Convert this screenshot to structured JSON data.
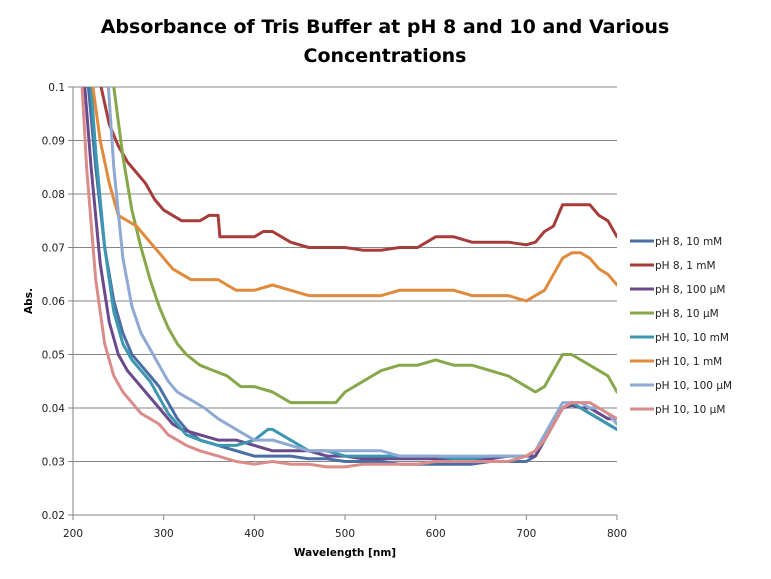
{
  "chart_data": {
    "type": "line",
    "title_lines": [
      "Absorbance of Tris Buffer at pH 8 and 10 and Various",
      "Concentrations"
    ],
    "xlabel": "Wavelength [nm]",
    "ylabel": "Abs.",
    "xlim": [
      200,
      800
    ],
    "ylim": [
      0.02,
      0.1
    ],
    "xticks": [
      200,
      300,
      400,
      500,
      600,
      700,
      800
    ],
    "xtick_labels": [
      "200",
      "300",
      "400",
      "500",
      "600",
      "700",
      "800"
    ],
    "yticks": [
      0.02,
      0.03,
      0.04,
      0.05,
      0.06,
      0.07,
      0.08,
      0.09,
      0.1
    ],
    "ytick_labels": [
      "0.02",
      "0.03",
      "0.04",
      "0.05",
      "0.06",
      "0.07",
      "0.08",
      "0.09",
      "0.1"
    ],
    "grid": "horizontal",
    "legend_position": "right",
    "series": [
      {
        "name": "pH 8, 10 mM",
        "color": "#4a6fa5",
        "x": [
          200,
          217,
          225,
          235,
          245,
          255,
          265,
          275,
          285,
          295,
          305,
          315,
          325,
          340,
          360,
          380,
          400,
          420,
          440,
          460,
          480,
          500,
          520,
          540,
          560,
          580,
          600,
          620,
          640,
          660,
          680,
          700,
          710,
          720,
          730,
          740,
          750,
          760,
          770,
          780,
          790,
          800
        ],
        "y": [
          0.16,
          0.1,
          0.085,
          0.07,
          0.06,
          0.054,
          0.05,
          0.048,
          0.046,
          0.044,
          0.041,
          0.038,
          0.036,
          0.034,
          0.033,
          0.032,
          0.031,
          0.031,
          0.031,
          0.0305,
          0.0305,
          0.03,
          0.03,
          0.03,
          0.0295,
          0.0295,
          0.0295,
          0.0295,
          0.0295,
          0.03,
          0.03,
          0.03,
          0.031,
          0.034,
          0.037,
          0.04,
          0.041,
          0.04,
          0.039,
          0.038,
          0.037,
          0.036
        ]
      },
      {
        "name": "pH 8, 1 mM",
        "color": "#a63d3a",
        "x": [
          200,
          225,
          231,
          240,
          250,
          260,
          270,
          280,
          290,
          300,
          310,
          320,
          330,
          340,
          350,
          360,
          362,
          380,
          400,
          410,
          420,
          440,
          460,
          480,
          500,
          520,
          540,
          560,
          580,
          600,
          620,
          640,
          660,
          680,
          700,
          710,
          720,
          730,
          740,
          750,
          760,
          770,
          780,
          790,
          800
        ],
        "y": [
          0.13,
          0.104,
          0.1,
          0.093,
          0.089,
          0.086,
          0.084,
          0.082,
          0.079,
          0.077,
          0.076,
          0.075,
          0.075,
          0.075,
          0.076,
          0.076,
          0.072,
          0.072,
          0.072,
          0.073,
          0.073,
          0.071,
          0.07,
          0.07,
          0.07,
          0.0695,
          0.0695,
          0.07,
          0.07,
          0.072,
          0.072,
          0.071,
          0.071,
          0.071,
          0.0705,
          0.071,
          0.073,
          0.074,
          0.078,
          0.078,
          0.078,
          0.078,
          0.076,
          0.075,
          0.072
        ]
      },
      {
        "name": "pH 8, 100 µM",
        "color": "#6a4a8c",
        "x": [
          200,
          213,
          220,
          230,
          240,
          250,
          260,
          270,
          280,
          290,
          300,
          310,
          320,
          340,
          360,
          380,
          400,
          420,
          440,
          460,
          480,
          500,
          520,
          540,
          560,
          580,
          600,
          620,
          640,
          660,
          680,
          700,
          710,
          720,
          730,
          740,
          750,
          760,
          770,
          780,
          790,
          800
        ],
        "y": [
          0.16,
          0.1,
          0.085,
          0.067,
          0.056,
          0.05,
          0.047,
          0.045,
          0.043,
          0.041,
          0.039,
          0.037,
          0.036,
          0.035,
          0.034,
          0.034,
          0.033,
          0.032,
          0.032,
          0.032,
          0.031,
          0.031,
          0.0305,
          0.0305,
          0.0305,
          0.0305,
          0.0305,
          0.0305,
          0.0305,
          0.0305,
          0.031,
          0.031,
          0.031,
          0.034,
          0.037,
          0.04,
          0.0405,
          0.04,
          0.04,
          0.039,
          0.038,
          0.038
        ]
      },
      {
        "name": "pH 8, 10 µM",
        "color": "#86a84a",
        "x": [
          200,
          240,
          245,
          255,
          265,
          275,
          285,
          295,
          305,
          315,
          325,
          340,
          355,
          370,
          385,
          400,
          420,
          440,
          460,
          480,
          490,
          500,
          520,
          540,
          560,
          580,
          600,
          620,
          640,
          660,
          680,
          700,
          710,
          720,
          730,
          740,
          750,
          760,
          770,
          780,
          790,
          800
        ],
        "y": [
          0.13,
          0.108,
          0.1,
          0.087,
          0.077,
          0.07,
          0.064,
          0.059,
          0.055,
          0.052,
          0.05,
          0.048,
          0.047,
          0.046,
          0.044,
          0.044,
          0.043,
          0.041,
          0.041,
          0.041,
          0.041,
          0.043,
          0.045,
          0.047,
          0.048,
          0.048,
          0.049,
          0.048,
          0.048,
          0.047,
          0.046,
          0.044,
          0.043,
          0.044,
          0.047,
          0.05,
          0.05,
          0.049,
          0.048,
          0.047,
          0.046,
          0.043
        ]
      },
      {
        "name": "pH 10, 10 mM",
        "color": "#3c98b0",
        "x": [
          200,
          220,
          225,
          235,
          245,
          255,
          265,
          275,
          285,
          295,
          305,
          315,
          325,
          340,
          360,
          380,
          400,
          415,
          420,
          440,
          460,
          480,
          500,
          520,
          540,
          560,
          580,
          600,
          620,
          640,
          660,
          680,
          700,
          710,
          720,
          730,
          740,
          750,
          760,
          770,
          780,
          790,
          800
        ],
        "y": [
          0.14,
          0.1,
          0.088,
          0.07,
          0.058,
          0.052,
          0.049,
          0.047,
          0.045,
          0.042,
          0.039,
          0.037,
          0.035,
          0.034,
          0.033,
          0.033,
          0.034,
          0.036,
          0.036,
          0.034,
          0.032,
          0.032,
          0.031,
          0.031,
          0.031,
          0.031,
          0.031,
          0.031,
          0.0305,
          0.0305,
          0.031,
          0.031,
          0.031,
          0.032,
          0.034,
          0.037,
          0.04,
          0.041,
          0.04,
          0.039,
          0.038,
          0.037,
          0.036
        ]
      },
      {
        "name": "pH 10, 1 mM",
        "color": "#e08a3c",
        "x": [
          200,
          218,
          222,
          230,
          240,
          250,
          260,
          270,
          280,
          290,
          300,
          310,
          320,
          330,
          340,
          350,
          360,
          370,
          380,
          400,
          420,
          440,
          460,
          480,
          500,
          520,
          540,
          560,
          580,
          600,
          620,
          640,
          660,
          680,
          700,
          710,
          720,
          730,
          740,
          750,
          760,
          770,
          780,
          790,
          800
        ],
        "y": [
          0.13,
          0.104,
          0.1,
          0.09,
          0.082,
          0.076,
          0.075,
          0.074,
          0.072,
          0.07,
          0.068,
          0.066,
          0.065,
          0.064,
          0.064,
          0.064,
          0.064,
          0.063,
          0.062,
          0.062,
          0.063,
          0.062,
          0.061,
          0.061,
          0.061,
          0.061,
          0.061,
          0.062,
          0.062,
          0.062,
          0.062,
          0.061,
          0.061,
          0.061,
          0.06,
          0.061,
          0.062,
          0.065,
          0.068,
          0.069,
          0.069,
          0.068,
          0.066,
          0.065,
          0.063
        ]
      },
      {
        "name": "pH 10, 100 µM",
        "color": "#8eaad4",
        "x": [
          200,
          232,
          239,
          245,
          255,
          265,
          275,
          285,
          295,
          305,
          315,
          325,
          335,
          345,
          360,
          380,
          400,
          420,
          440,
          460,
          480,
          500,
          520,
          540,
          560,
          580,
          600,
          620,
          640,
          660,
          680,
          700,
          710,
          720,
          730,
          740,
          750,
          760,
          770,
          780,
          790,
          800
        ],
        "y": [
          0.14,
          0.108,
          0.1,
          0.085,
          0.068,
          0.059,
          0.054,
          0.051,
          0.048,
          0.045,
          0.043,
          0.042,
          0.041,
          0.04,
          0.038,
          0.036,
          0.034,
          0.034,
          0.033,
          0.032,
          0.032,
          0.032,
          0.032,
          0.032,
          0.031,
          0.031,
          0.031,
          0.031,
          0.031,
          0.031,
          0.031,
          0.031,
          0.032,
          0.035,
          0.038,
          0.041,
          0.041,
          0.041,
          0.04,
          0.04,
          0.039,
          0.037
        ]
      },
      {
        "name": "pH 10, 10 µM",
        "color": "#d98c8a",
        "x": [
          200,
          210,
          215,
          225,
          235,
          245,
          255,
          265,
          275,
          285,
          295,
          305,
          315,
          325,
          340,
          360,
          380,
          400,
          420,
          440,
          460,
          480,
          500,
          520,
          540,
          560,
          580,
          600,
          620,
          640,
          660,
          680,
          700,
          710,
          720,
          730,
          740,
          750,
          760,
          770,
          780,
          790,
          800
        ],
        "y": [
          0.14,
          0.1,
          0.085,
          0.064,
          0.052,
          0.046,
          0.043,
          0.041,
          0.039,
          0.038,
          0.037,
          0.035,
          0.034,
          0.033,
          0.032,
          0.031,
          0.03,
          0.0295,
          0.03,
          0.0295,
          0.0295,
          0.029,
          0.029,
          0.0295,
          0.0295,
          0.0295,
          0.0295,
          0.03,
          0.03,
          0.03,
          0.03,
          0.03,
          0.031,
          0.032,
          0.034,
          0.037,
          0.04,
          0.041,
          0.041,
          0.041,
          0.04,
          0.039,
          0.038
        ]
      }
    ]
  }
}
